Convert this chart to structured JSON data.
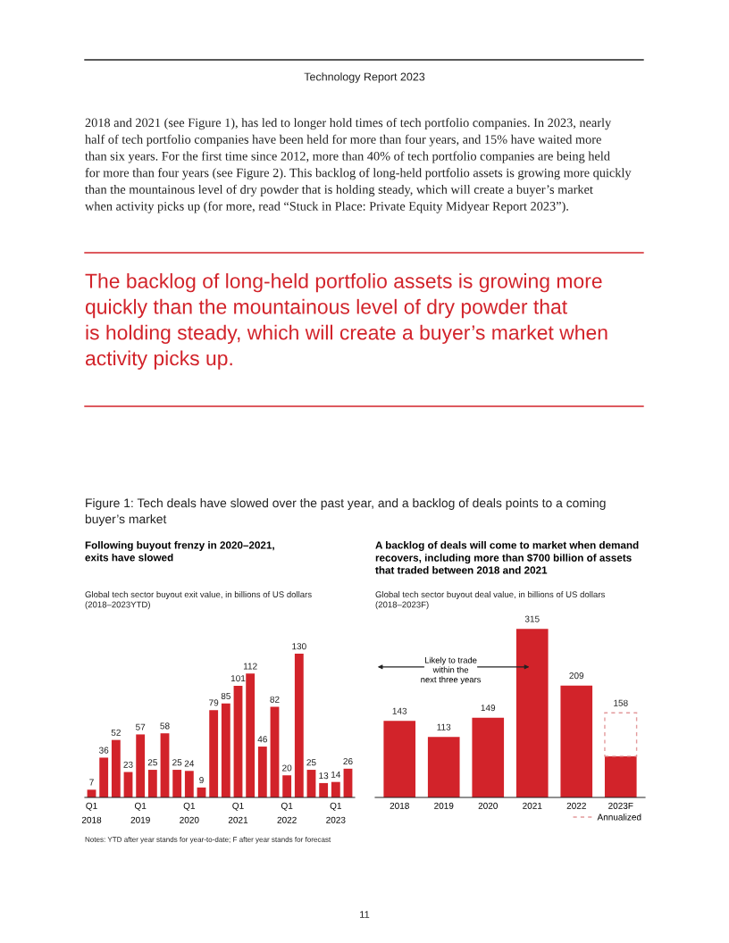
{
  "chart_data": [
    {
      "type": "bar",
      "title": "Following buyout frenzy in 2020–2021,\nexits have slowed",
      "subtitle": "Global tech sector buyout exit value, in billions of US dollars\n(2018–2023YTD)",
      "categories": [
        "Q1\n2018",
        null,
        null,
        null,
        "Q1\n2019",
        null,
        null,
        null,
        "Q1\n2020",
        null,
        null,
        null,
        "Q1\n2021",
        null,
        null,
        null,
        "Q1\n2022",
        null,
        null,
        null,
        "Q1\n2023",
        null
      ],
      "series": [
        {
          "color": "#d2232a",
          "values": [
            7,
            36,
            52,
            23,
            57,
            25,
            58,
            25,
            24,
            9,
            79,
            85,
            101,
            112,
            46,
            82,
            20,
            130,
            25,
            13,
            14,
            26
          ]
        }
      ],
      "data_labels": true,
      "annotations": [
        "Technology Report 2023",
        "2018 and 2021 (see Figure 1), has led to longer hold times of tech portfolio companies. In 2023, nearly\nhalf of tech portfolio companies have been held for more than four years, and 15% have waited more\nthan six years. For the first time since 2012, more than 40% of tech portfolio companies are being held\nfor more than four years (see Figure 2). This backlog of long-held portfolio assets is growing more quickly\nthan the mountainous level of dry powder that is holding steady, which will create a buyer’s market\nwhen activity picks up (for more, read “Stuck in Place: Private Equity Midyear Report 2023”).",
        "The backlog of long-held portfolio assets is growing more\nquickly than the mountainous level of dry powder that\nis holding steady, which will create a buyer’s market when\nactivity picks up.",
        "Figure 1: Tech deals have slowed over the past year, and a backlog of deals points to a coming\nbuyer’s market",
        "Notes: YTD after year stands for year-to-date; F after year stands for forecast",
        "11"
      ]
    },
    {
      "type": "bar",
      "title": "A backlog of deals will come to market when demand\nrecovers, including more than $700 billion of assets\nthat traded between 2018 and 2021",
      "subtitle": "Global tech sector buyout deal value, in billions of US dollars\n(2018–2023F)",
      "categories": [
        "2018",
        "2019",
        "2020",
        "2021",
        "2022",
        "2023F"
      ],
      "stacked": true,
      "series": [
        {
          "color": "#d2232a",
          "values": [
            143,
            113,
            149,
            315,
            209,
            77
          ],
          "value_labels": [
            "143",
            "113",
            "149",
            "315",
            "209",
            null
          ]
        },
        {
          "name": "Annualized",
          "color": "#e39a9c",
          "line_style": "dashed",
          "values": [
            null,
            null,
            null,
            null,
            null,
            81
          ]
        }
      ],
      "totals": [
        null,
        null,
        null,
        null,
        null,
        "158"
      ],
      "legend": "bottom right",
      "annotations": [
        "Likely to trade\nwithin the\nnext three years"
      ]
    }
  ]
}
